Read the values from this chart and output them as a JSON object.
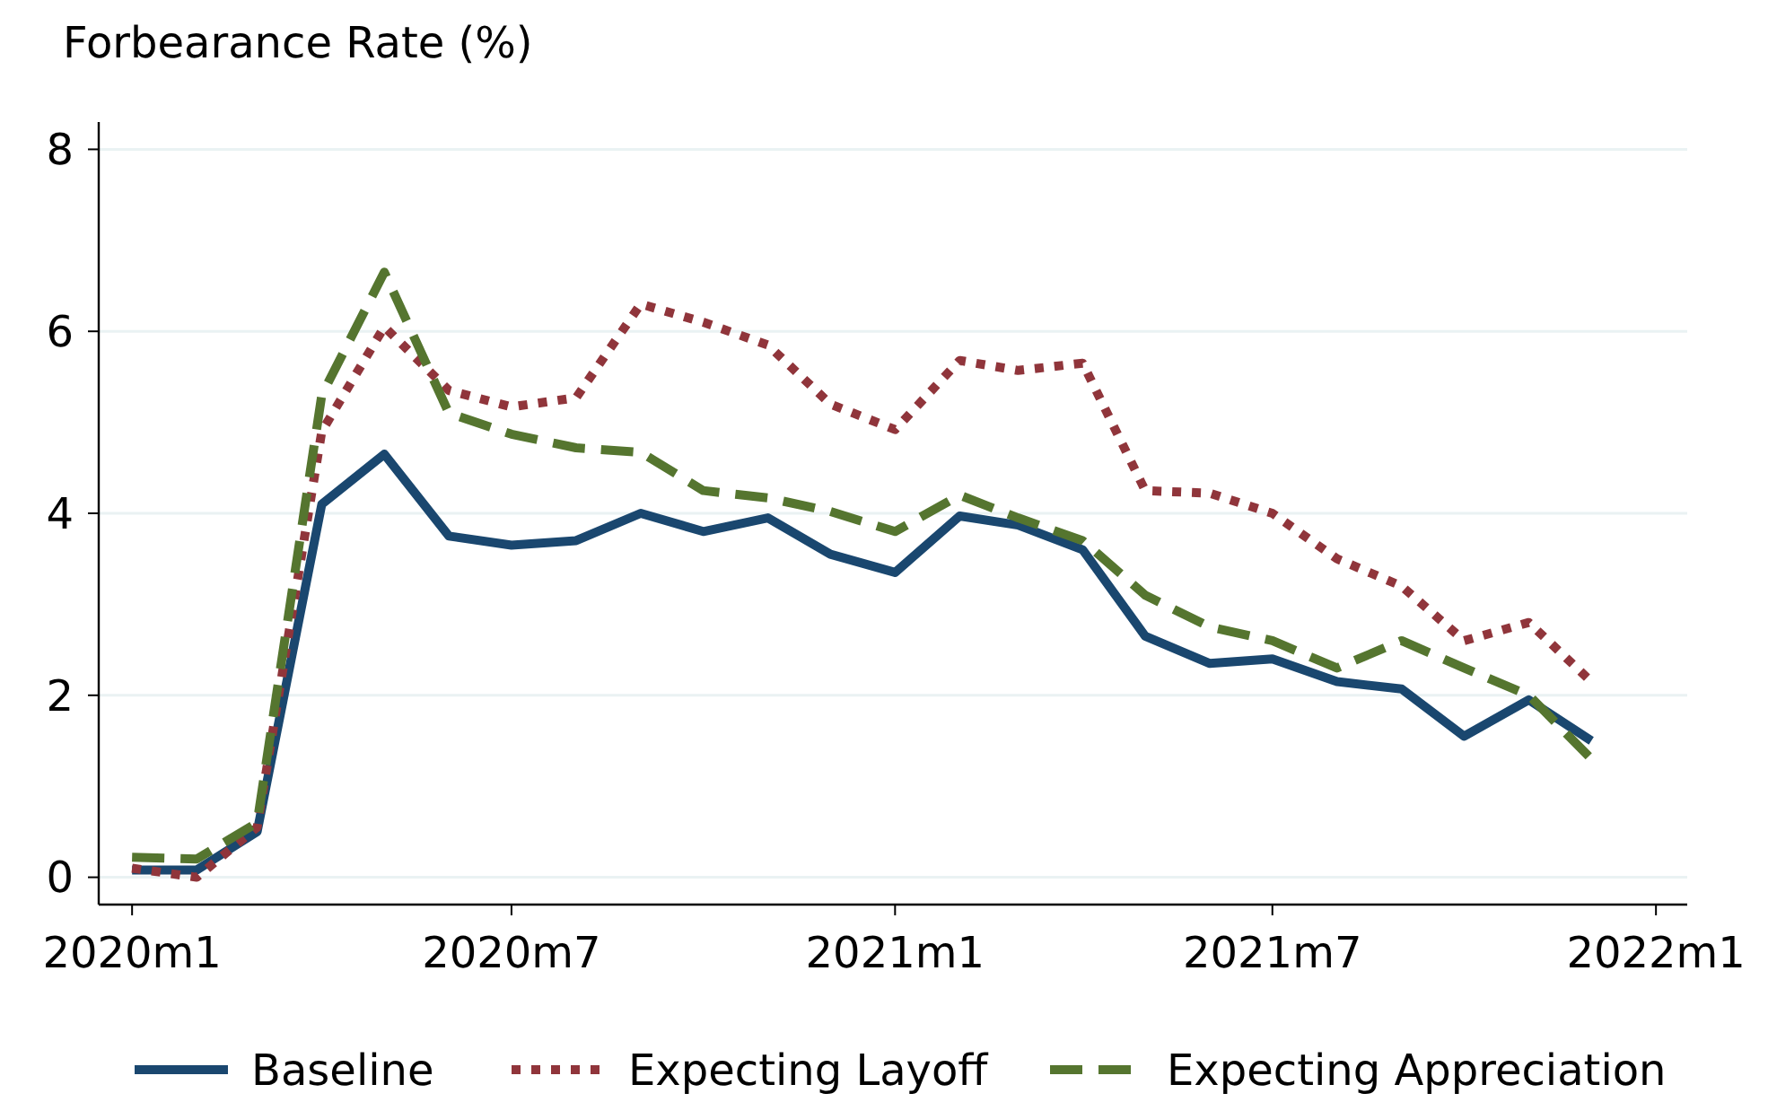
{
  "chart_data": {
    "type": "line",
    "ylabel": "Forbearance Rate (%)",
    "x": [
      "2020-01",
      "2020-02",
      "2020-03",
      "2020-04",
      "2020-05",
      "2020-06",
      "2020-07",
      "2020-08",
      "2020-09",
      "2020-10",
      "2020-11",
      "2020-12",
      "2021-01",
      "2021-02",
      "2021-03",
      "2021-04",
      "2021-05",
      "2021-06",
      "2021-07",
      "2021-08",
      "2021-09",
      "2021-10",
      "2021-11",
      "2021-12"
    ],
    "xlim": [
      "2019-12-16",
      "2022-01-16"
    ],
    "xticks": [
      {
        "value": "2020-01",
        "label": "2020m1"
      },
      {
        "value": "2020-07",
        "label": "2020m7"
      },
      {
        "value": "2021-01",
        "label": "2021m1"
      },
      {
        "value": "2021-07",
        "label": "2021m7"
      },
      {
        "value": "2022-01",
        "label": "2022m1"
      }
    ],
    "ylim": [
      -0.3,
      8.3
    ],
    "yticks": [
      0,
      2,
      4,
      6,
      8
    ],
    "grid": "y",
    "legend": "bottom",
    "series": [
      {
        "name": "Baseline",
        "color": "#1a476f",
        "line_style": "solid",
        "values": [
          0.08,
          0.08,
          0.5,
          4.1,
          4.65,
          3.75,
          3.65,
          3.7,
          4.0,
          3.8,
          3.95,
          3.55,
          3.35,
          3.97,
          3.87,
          3.6,
          2.65,
          2.35,
          2.4,
          2.15,
          2.07,
          1.55,
          1.95,
          1.5
        ]
      },
      {
        "name": "Expecting Layoff",
        "color": "#90353b",
        "line_style": "dotted",
        "values": [
          0.1,
          0.0,
          0.55,
          4.9,
          6.05,
          5.35,
          5.17,
          5.27,
          6.3,
          6.1,
          5.85,
          5.2,
          4.92,
          5.68,
          5.57,
          5.65,
          4.25,
          4.22,
          4.0,
          3.5,
          3.2,
          2.6,
          2.8,
          2.15
        ]
      },
      {
        "name": "Expecting Appreciation",
        "color": "#55752f",
        "line_style": "dashed",
        "values": [
          0.22,
          0.2,
          0.6,
          5.3,
          6.65,
          5.1,
          4.87,
          4.72,
          4.67,
          4.25,
          4.17,
          4.02,
          3.8,
          4.2,
          3.95,
          3.7,
          3.1,
          2.75,
          2.6,
          2.3,
          2.6,
          2.3,
          2.0,
          1.3
        ]
      }
    ]
  }
}
